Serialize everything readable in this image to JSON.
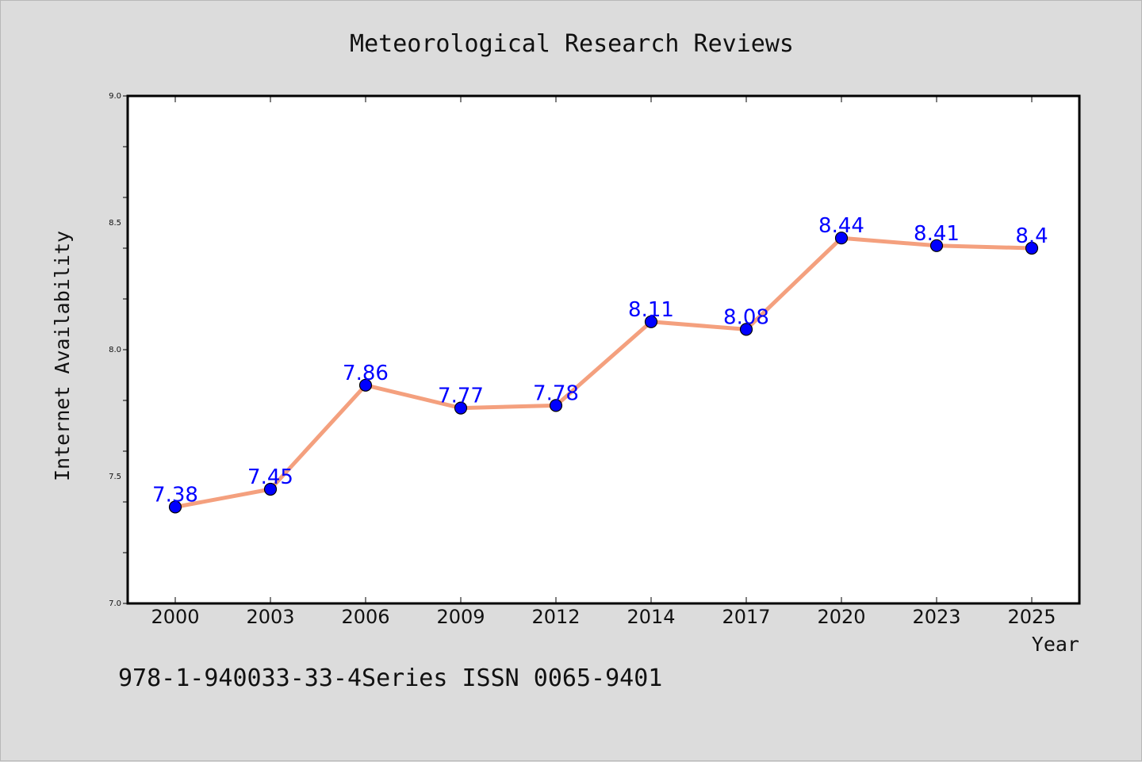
{
  "chart_data": {
    "type": "line",
    "title": "Meteorological Research Reviews",
    "xlabel": "Year",
    "ylabel": "Internet Availability",
    "categories": [
      "2000",
      "2003",
      "2006",
      "2009",
      "2012",
      "2014",
      "2017",
      "2020",
      "2023",
      "2025"
    ],
    "series": [
      {
        "values": [
          7.38,
          7.45,
          7.86,
          7.77,
          7.78,
          8.11,
          8.08,
          8.44,
          8.41,
          8.4
        ],
        "labels": [
          "7.38",
          "7.45",
          "7.86",
          "7.77",
          "7.78",
          "8.11",
          "8.08",
          "8.44",
          "8.41",
          "8.4"
        ],
        "line_color": "#f4a07e",
        "marker_color": "#0000ff"
      }
    ],
    "ylim": [
      7.0,
      9.0
    ],
    "yticks": [
      "7.0",
      "7.5",
      "8.0",
      "8.5",
      "9.0"
    ],
    "grid": false,
    "legend": "none"
  },
  "footer": {
    "text": "978-1-940033-33-4Series ISSN 0065-9401"
  },
  "colors": {
    "background": "#dcdcdc",
    "plot_background": "#ffffff",
    "axis": "#000000"
  }
}
